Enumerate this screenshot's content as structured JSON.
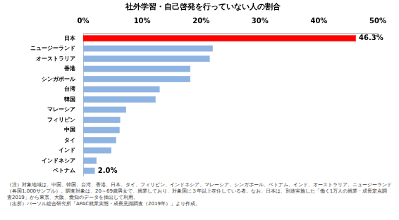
{
  "chart_data": {
    "type": "bar",
    "orientation": "horizontal",
    "title": "社外学習・自己啓発を行っていない人の割合",
    "categories": [
      "日本",
      "ニュージーランド",
      "オーストラリア",
      "香港",
      "シンガポール",
      "台湾",
      "韓国",
      "マレーシア",
      "フィリピン",
      "中国",
      "タイ",
      "インド",
      "インドネシア",
      "ベトナム"
    ],
    "values": [
      46.3,
      22.0,
      21.5,
      18.2,
      18.2,
      13.0,
      12.3,
      7.3,
      6.3,
      6.2,
      5.6,
      4.8,
      2.3,
      2.0
    ],
    "value_labels": [
      "46.3%",
      null,
      null,
      null,
      null,
      null,
      null,
      null,
      null,
      null,
      null,
      null,
      null,
      "2.0%"
    ],
    "data_labels": true,
    "colors": [
      "#ff0000",
      "#8eb4e3",
      "#8eb4e3",
      "#8eb4e3",
      "#8eb4e3",
      "#8eb4e3",
      "#8eb4e3",
      "#8eb4e3",
      "#8eb4e3",
      "#8eb4e3",
      "#8eb4e3",
      "#8eb4e3",
      "#8eb4e3",
      "#8eb4e3"
    ],
    "xlim": [
      0,
      50
    ],
    "xticks": [
      {
        "value": 0,
        "label": "0%"
      },
      {
        "value": 10,
        "label": "10%"
      },
      {
        "value": 20,
        "label": "20%"
      },
      {
        "value": 30,
        "label": "30%"
      },
      {
        "value": 40,
        "label": "40%"
      },
      {
        "value": 50,
        "label": "50%"
      }
    ],
    "grid": false,
    "annotations": [
      "（注）対象地域は、中国、韓国、台湾、香港、日本、タイ、フィリピン、インドネシア、マレーシア、シンガポール、ベトナム、インド、オーストラリア、ニュージーランド（各国1,000サンプル）。調査対象は、20～69歳男女で、就業しており、対象国に３年以上在住している者。なお、日本は、別途実施した「働く1万人の就業・成長定点調査2019」から東京、大阪、愛知のデータを抽出して利用。",
      "（出所）パーソル総合研究所「APAC就業実態・成長意識調査（2019年）」より作成。"
    ]
  }
}
